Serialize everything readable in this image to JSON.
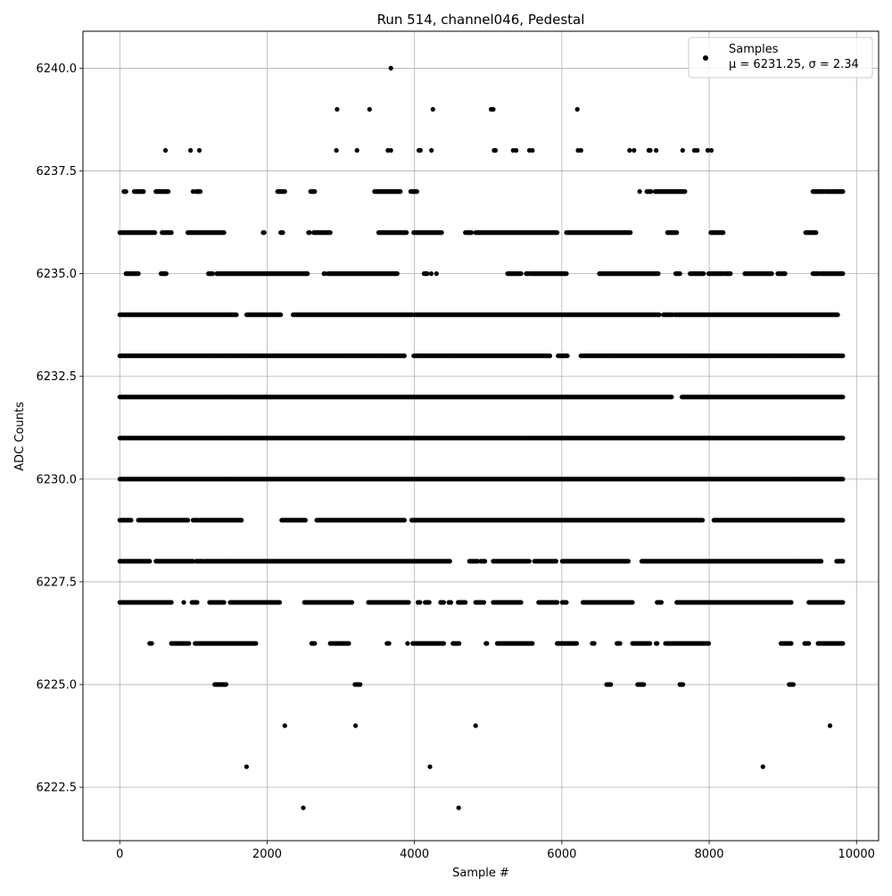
{
  "chart_data": {
    "type": "scatter",
    "title": "Run 514, channel046, Pedestal",
    "xlabel": "Sample #",
    "ylabel": "ADC Counts",
    "xlim": [
      -500,
      10300
    ],
    "ylim": [
      6221.2,
      6240.9
    ],
    "x_ticks": [
      0,
      2000,
      4000,
      6000,
      8000,
      10000
    ],
    "x_tick_labels": [
      "0",
      "2000",
      "4000",
      "6000",
      "8000",
      "10000"
    ],
    "y_ticks": [
      6222.5,
      6225.0,
      6227.5,
      6230.0,
      6232.5,
      6235.0,
      6237.5,
      6240.0
    ],
    "y_tick_labels": [
      "6222.5",
      "6225.0",
      "6227.5",
      "6230.0",
      "6232.5",
      "6235.0",
      "6237.5",
      "6240.0"
    ],
    "grid": true,
    "legend": {
      "placement": "top-right",
      "entries": [
        {
          "name": "Samples",
          "stats": "μ = 6231.25, σ = 2.34"
        }
      ]
    },
    "series": [
      {
        "name": "Samples",
        "color": "#000000",
        "x_range": [
          0,
          9820
        ],
        "mean": 6231.25,
        "sigma": 2.34,
        "levels": [
          {
            "y": 6222,
            "x": [
              2490,
              4600
            ]
          },
          {
            "y": 6223,
            "x": [
              1720,
              4210,
              8730
            ]
          },
          {
            "y": 6224,
            "x": [
              2240,
              3200,
              4830,
              9640
            ]
          },
          {
            "y": 6238,
            "x": [
              620,
              960,
              1080,
              2940,
              3220,
              3640,
              3680,
              4060,
              4080,
              4230,
              5080,
              5100,
              5340,
              5380,
              5560,
              5600,
              6220,
              6260,
              6920,
              6980,
              7180,
              7200,
              7280,
              7640,
              7800,
              7840,
              7980,
              8030
            ]
          },
          {
            "y": 6239,
            "x": [
              2950,
              3390,
              4250,
              5040,
              5070,
              6210
            ]
          },
          {
            "y": 6240,
            "x": [
              3680
            ]
          }
        ],
        "dense_levels": [
          {
            "y": 6225,
            "fill": 0.12
          },
          {
            "y": 6226,
            "fill": 0.42
          },
          {
            "y": 6227,
            "fill": 0.6
          },
          {
            "y": 6228,
            "fill": 0.8
          },
          {
            "y": 6229,
            "fill": 0.93
          },
          {
            "y": 6230,
            "fill": 0.98
          },
          {
            "y": 6231,
            "fill": 0.99
          },
          {
            "y": 6232,
            "fill": 0.98
          },
          {
            "y": 6233,
            "fill": 0.95
          },
          {
            "y": 6234,
            "fill": 0.88
          },
          {
            "y": 6235,
            "fill": 0.62
          },
          {
            "y": 6236,
            "fill": 0.4
          },
          {
            "y": 6237,
            "fill": 0.15
          }
        ]
      }
    ]
  }
}
